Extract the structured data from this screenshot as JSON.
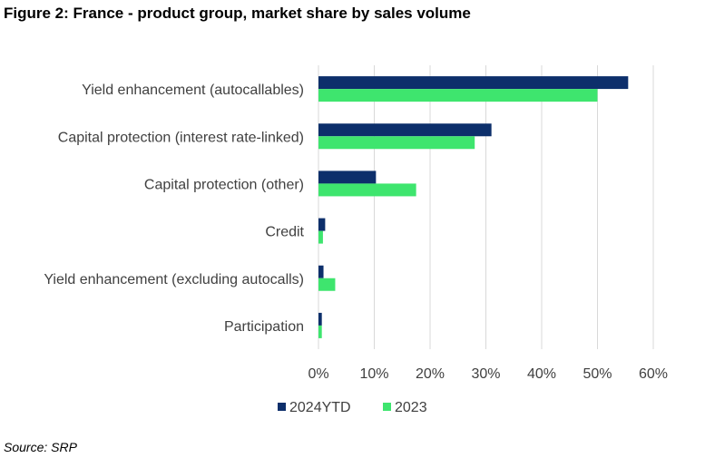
{
  "figure": {
    "title": "Figure 2: France - product group, market share by sales volume",
    "source": "Source: SRP"
  },
  "colors": {
    "series_2024": "#0d2f6b",
    "series_2023": "#3ee56e",
    "grid": "#d9d9d9",
    "text": "#404040"
  },
  "chart_data": {
    "type": "bar",
    "orientation": "horizontal",
    "categories": [
      "Yield enhancement (autocallables)",
      "Capital protection (interest rate-linked)",
      "Capital protection (other)",
      "Credit",
      "Yield enhancement (excluding autocalls)",
      "Participation"
    ],
    "series": [
      {
        "name": "2024YTD",
        "values": [
          55.5,
          31.0,
          10.3,
          1.2,
          0.9,
          0.6
        ]
      },
      {
        "name": "2023",
        "values": [
          50.0,
          28.0,
          17.5,
          0.8,
          3.0,
          0.6
        ]
      }
    ],
    "xlim": [
      0,
      60
    ],
    "xticks": [
      "0%",
      "10%",
      "20%",
      "30%",
      "40%",
      "50%",
      "60%"
    ],
    "grid": true,
    "legend": "bottom"
  }
}
